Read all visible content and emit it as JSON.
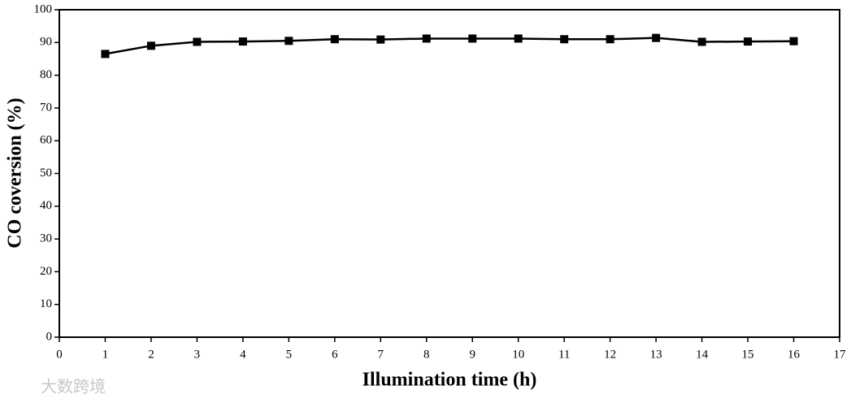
{
  "chart_data": {
    "type": "line",
    "x_label": "Illumination time (h)",
    "y_label": "CO coversion (%)",
    "x": [
      1,
      2,
      3,
      4,
      5,
      6,
      7,
      8,
      9,
      10,
      11,
      12,
      13,
      14,
      15,
      16
    ],
    "series": [
      {
        "name": "CO coversion",
        "color": "#000000",
        "values": [
          86.5,
          89,
          90.2,
          90.3,
          90.5,
          91,
          90.9,
          91.2,
          91.2,
          91.2,
          91,
          91,
          91.4,
          90.2,
          90.3,
          90.4
        ]
      }
    ],
    "xlim": [
      0,
      17
    ],
    "xticks": [
      0,
      1,
      2,
      3,
      4,
      5,
      6,
      7,
      8,
      9,
      10,
      11,
      12,
      13,
      14,
      15,
      16,
      17
    ],
    "ylim": [
      0,
      100
    ],
    "yticks": [
      0,
      10,
      20,
      30,
      40,
      50,
      60,
      70,
      80,
      90,
      100
    ],
    "grid": false,
    "marker": "square"
  },
  "watermark": "大数跨境"
}
